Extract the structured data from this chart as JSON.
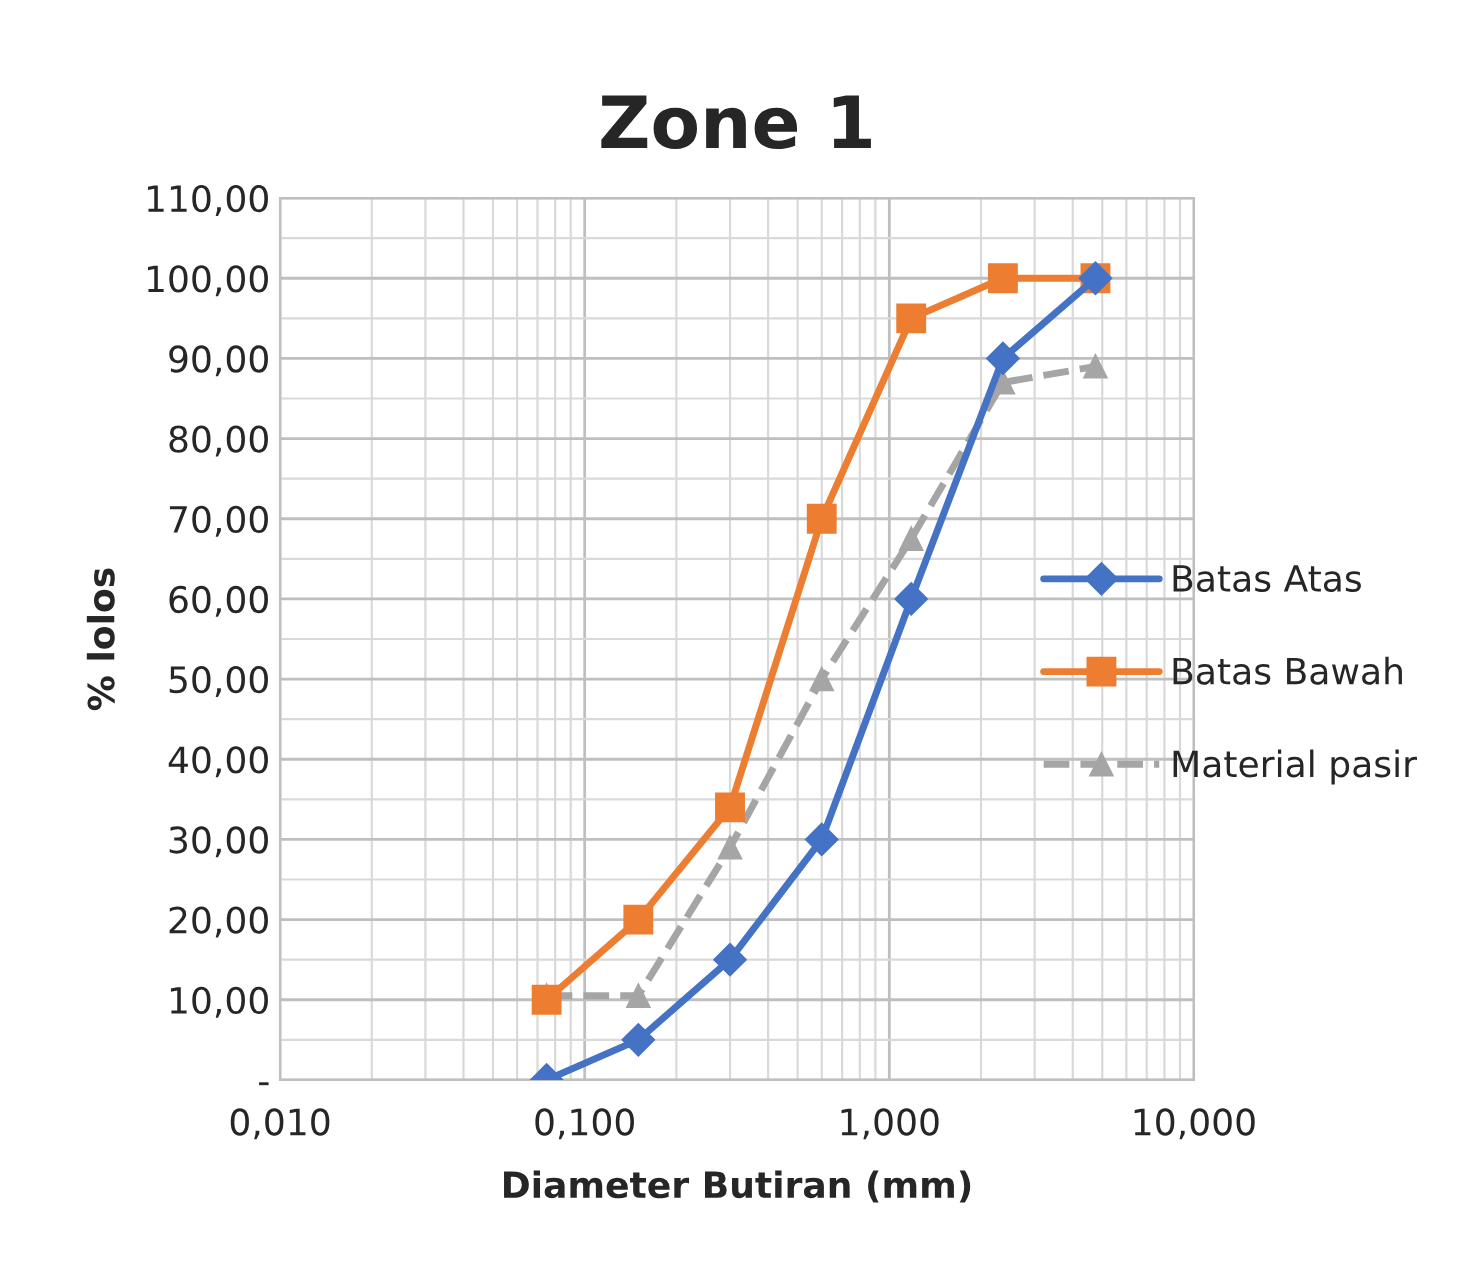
{
  "chart_data": {
    "type": "line",
    "title": "Zone 1",
    "xlabel": "Diameter Butiran (mm)",
    "ylabel": "% lolos",
    "x": [
      0.075,
      0.15,
      0.3,
      0.6,
      1.18,
      2.36,
      4.75
    ],
    "series": [
      {
        "name": "Batas Atas",
        "color": "#4472c4",
        "marker": "diamond",
        "line_style": "solid",
        "values": [
          0,
          5,
          15,
          30,
          60,
          90,
          100
        ]
      },
      {
        "name": "Batas Bawah",
        "color": "#ed7d31",
        "marker": "square",
        "line_style": "solid",
        "values": [
          10,
          20,
          34,
          70,
          95,
          100,
          100
        ]
      },
      {
        "name": "Material pasir",
        "color": "#a5a5a5",
        "marker": "triangle",
        "line_style": "dashed",
        "values": [
          10.5,
          10.5,
          29,
          50,
          67.5,
          87,
          89
        ]
      }
    ],
    "log": "x",
    "xlim": [
      0.01,
      10
    ],
    "xticks": [
      {
        "value": 0.01,
        "label": "0,010"
      },
      {
        "value": 0.1,
        "label": "0,100"
      },
      {
        "value": 1,
        "label": "1,000"
      },
      {
        "value": 10,
        "label": "10,000"
      }
    ],
    "ylim": [
      0,
      110
    ],
    "yticks": [
      {
        "value": 0,
        "label": "-"
      },
      {
        "value": 10,
        "label": "10,00"
      },
      {
        "value": 20,
        "label": "20,00"
      },
      {
        "value": 30,
        "label": "30,00"
      },
      {
        "value": 40,
        "label": "40,00"
      },
      {
        "value": 50,
        "label": "50,00"
      },
      {
        "value": 60,
        "label": "60,00"
      },
      {
        "value": 70,
        "label": "70,00"
      },
      {
        "value": 80,
        "label": "80,00"
      },
      {
        "value": 90,
        "label": "90,00"
      },
      {
        "value": 100,
        "label": "100,00"
      },
      {
        "value": 110,
        "label": "110,00"
      }
    ],
    "grid": true,
    "legend": "right"
  }
}
